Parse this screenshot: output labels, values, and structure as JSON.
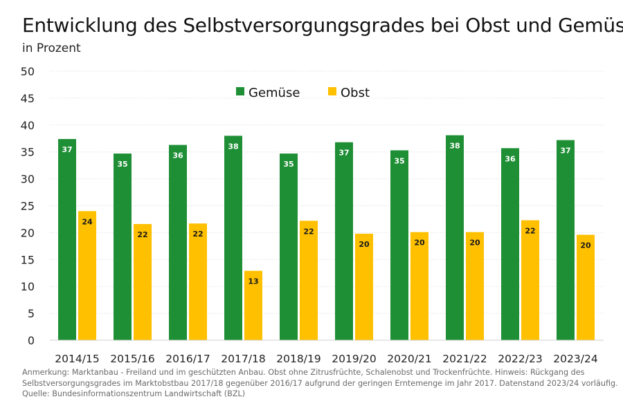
{
  "title": "Entwicklung des Selbstversorgungsgrades bei Obst und Gemüse",
  "subtitle": "in Prozent",
  "colors": {
    "gemuese": "#1f8f36",
    "obst": "#ffc000",
    "grid": "#d9d9d9"
  },
  "chart_data": {
    "type": "bar",
    "categories": [
      "2014/15",
      "2015/16",
      "2016/17",
      "2017/18",
      "2018/19",
      "2019/20",
      "2020/21",
      "2021/22",
      "2022/23",
      "2023/24"
    ],
    "series": [
      {
        "name": "Gemüse",
        "values": [
          37.4,
          34.7,
          36.3,
          38.0,
          34.7,
          36.8,
          35.3,
          38.1,
          35.7,
          37.2
        ],
        "labels": [
          "37",
          "35",
          "36",
          "38",
          "35",
          "37",
          "35",
          "38",
          "36",
          "37"
        ]
      },
      {
        "name": "Obst",
        "values": [
          24.0,
          21.6,
          21.7,
          12.9,
          22.2,
          19.8,
          20.1,
          20.1,
          22.3,
          19.6
        ],
        "labels": [
          "24",
          "22",
          "22",
          "13",
          "22",
          "20",
          "20",
          "20",
          "22",
          "20"
        ]
      }
    ],
    "yticks": [
      0,
      5,
      10,
      15,
      20,
      25,
      30,
      35,
      40,
      45,
      50
    ],
    "ylim": [
      0,
      50
    ],
    "grid": true,
    "legend_position": "top-center"
  },
  "notes": [
    "Anmerkung: Marktanbau - Freiland und im geschützten Anbau. Obst ohne Zitrusfrüchte, Schalenobst und Trockenfrüchte. Hinweis: Rückgang des",
    "Selbstversorgungsgrades im Marktobstbau 2017/18 gegenüber 2016/17 aufgrund der geringen Erntemenge im Jahr 2017. Datenstand 2023/24 vorläufig.",
    "Quelle: Bundesinformationszentrum Landwirtschaft (BZL)"
  ]
}
